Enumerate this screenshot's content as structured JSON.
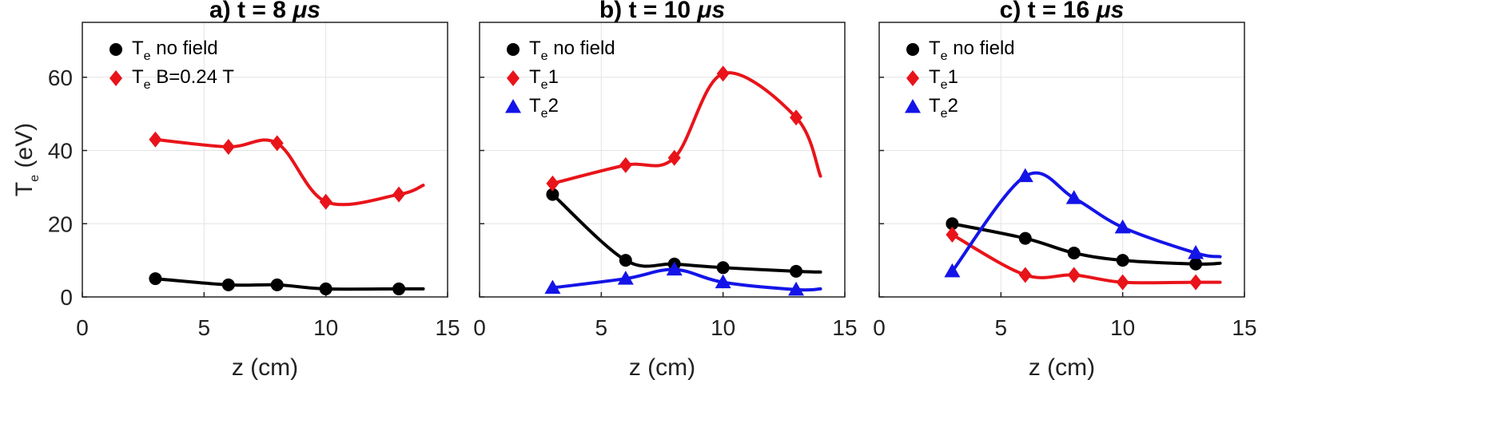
{
  "chart_data": [
    {
      "type": "line",
      "panel_label": "a)",
      "title": "t = 8 μs",
      "title_prefix": "a)   t = 8 ",
      "title_unit": "μs",
      "xlabel": "z (cm)",
      "ylabel": "T",
      "ylabel_sub": "e",
      "ylabel_unit": " (eV)",
      "xlim": [
        0,
        15
      ],
      "ylim": [
        0,
        75
      ],
      "xticks": [
        0,
        5,
        10,
        15
      ],
      "yticks": [
        0,
        20,
        40,
        60
      ],
      "grid": true,
      "legend_position": "top-left",
      "series": [
        {
          "name": "Te no field",
          "label_main": "T",
          "label_sub": "e",
          "label_rest": " no field",
          "color": "#000000",
          "marker": "circle",
          "x": [
            3,
            6,
            8,
            10,
            13
          ],
          "y": [
            5,
            3.3,
            3.3,
            2.2,
            2.2
          ],
          "curve_end": [
            14,
            2.2
          ]
        },
        {
          "name": "Te B=0.24 T",
          "label_main": "T",
          "label_sub": "e",
          "label_rest": " B=0.24 T",
          "color": "#e8141a",
          "marker": "diamond",
          "x": [
            3,
            6,
            8,
            10,
            13
          ],
          "y": [
            43,
            41,
            42,
            26,
            28
          ],
          "curve_end": [
            14,
            30.5
          ]
        }
      ]
    },
    {
      "type": "line",
      "panel_label": "b)",
      "title": "t = 10 μs",
      "title_prefix": "b)   t = 10 ",
      "title_unit": "μs",
      "xlabel": "z (cm)",
      "xlim": [
        0,
        15
      ],
      "ylim": [
        0,
        75
      ],
      "xticks": [
        0,
        5,
        10,
        15
      ],
      "yticks": [
        0,
        20,
        40,
        60
      ],
      "grid": true,
      "legend_position": "top-left",
      "series": [
        {
          "name": "Te no field",
          "label_main": "T",
          "label_sub": "e",
          "label_rest": " no field",
          "color": "#000000",
          "marker": "circle",
          "x": [
            3,
            6,
            8,
            10,
            13
          ],
          "y": [
            28,
            10,
            9,
            8,
            7
          ],
          "curve_end": [
            14,
            6.8
          ]
        },
        {
          "name": "Te1",
          "label_main": "T",
          "label_sub": "e",
          "label_rest": "1",
          "color": "#e8141a",
          "marker": "diamond",
          "x": [
            3,
            6,
            8,
            10,
            13
          ],
          "y": [
            31,
            36,
            38,
            61,
            49
          ],
          "curve_end": [
            14,
            33
          ]
        },
        {
          "name": "Te2",
          "label_main": "T",
          "label_sub": "e",
          "label_rest": "2",
          "color": "#1414e8",
          "marker": "triangle",
          "x": [
            3,
            6,
            8,
            10,
            13
          ],
          "y": [
            2.5,
            5,
            7.5,
            4,
            2
          ],
          "curve_end": [
            14,
            2.2
          ]
        }
      ]
    },
    {
      "type": "line",
      "panel_label": "c)",
      "title": "t = 16 μs",
      "title_prefix": "c)   t = 16 ",
      "title_unit": "μs",
      "xlabel": "z (cm)",
      "xlim": [
        0,
        15
      ],
      "ylim": [
        0,
        75
      ],
      "xticks": [
        0,
        5,
        10,
        15
      ],
      "yticks": [
        0,
        20,
        40,
        60
      ],
      "grid": true,
      "legend_position": "top-left",
      "series": [
        {
          "name": "Te no field",
          "label_main": "T",
          "label_sub": "e",
          "label_rest": " no field",
          "color": "#000000",
          "marker": "circle",
          "x": [
            3,
            6,
            8,
            10,
            13
          ],
          "y": [
            20,
            16,
            12,
            10,
            9
          ],
          "curve_end": [
            14,
            9.2
          ]
        },
        {
          "name": "Te1",
          "label_main": "T",
          "label_sub": "e",
          "label_rest": "1",
          "color": "#e8141a",
          "marker": "diamond",
          "x": [
            3,
            6,
            8,
            10,
            13
          ],
          "y": [
            17,
            6,
            6,
            4,
            4
          ],
          "curve_end": [
            14,
            4
          ]
        },
        {
          "name": "Te2",
          "label_main": "T",
          "label_sub": "e",
          "label_rest": "2",
          "color": "#1414e8",
          "marker": "triangle",
          "x": [
            3,
            6,
            8,
            10,
            13
          ],
          "y": [
            7,
            33,
            27,
            19,
            12
          ],
          "curve_end": [
            14,
            11
          ]
        }
      ]
    }
  ]
}
